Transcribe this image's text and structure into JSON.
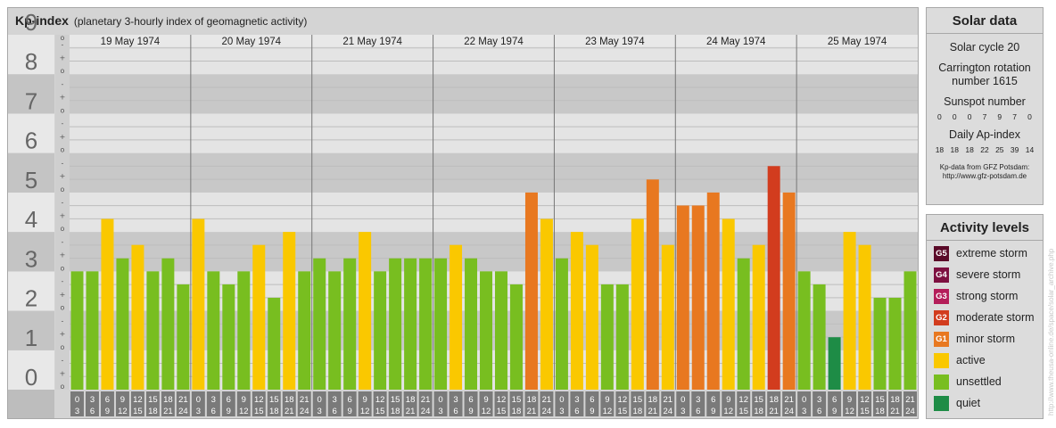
{
  "header": {
    "title": "Kp-index",
    "subtitle": "(planetary 3-hourly index of geomagnetic activity)"
  },
  "solar": {
    "heading": "Solar data",
    "cycle": "Solar cycle 20",
    "carrington_line1": "Carrington rotation",
    "carrington_line2": "number 1615",
    "sunspot_label": "Sunspot number",
    "sunspot_values": [
      "0",
      "0",
      "0",
      "7",
      "9",
      "7",
      "0"
    ],
    "ap_label": "Daily Ap-index",
    "ap_values": [
      "18",
      "18",
      "18",
      "22",
      "25",
      "39",
      "14"
    ],
    "source_line1": "Kp-data from GFZ Potsdam:",
    "source_line2": "http://www.gfz-potsdam.de"
  },
  "activity": {
    "heading": "Activity levels",
    "levels": [
      {
        "badge": "G5",
        "label": "extreme storm",
        "color": "#5a0a28"
      },
      {
        "badge": "G4",
        "label": "severe storm",
        "color": "#7d1040"
      },
      {
        "badge": "G3",
        "label": "strong storm",
        "color": "#b41e5a"
      },
      {
        "badge": "G2",
        "label": "moderate storm",
        "color": "#d23c1e"
      },
      {
        "badge": "G1",
        "label": "minor storm",
        "color": "#e87820"
      },
      {
        "badge": "",
        "label": "active",
        "color": "#fac800"
      },
      {
        "badge": "",
        "label": "unsettled",
        "color": "#78be20"
      },
      {
        "badge": "",
        "label": "quiet",
        "color": "#1e8c46"
      }
    ]
  },
  "watermark": "http://www.theusa-online.de/space/solar_archive.php",
  "chart_data": {
    "type": "bar",
    "title": "Kp-index",
    "ylim": [
      0,
      9
    ],
    "y_ticks": [
      "0",
      "1",
      "2",
      "3",
      "4",
      "5",
      "6",
      "7",
      "8",
      "9"
    ],
    "sub_ticks": [
      "o",
      "+",
      "-",
      "o"
    ],
    "days": [
      "19 May 1974",
      "20 May 1974",
      "21 May 1974",
      "22 May 1974",
      "23 May 1974",
      "24 May 1974",
      "25 May 1974"
    ],
    "hour_labels": [
      [
        "0",
        "3"
      ],
      [
        "3",
        "6"
      ],
      [
        "6",
        "9"
      ],
      [
        "9",
        "12"
      ],
      [
        "12",
        "15"
      ],
      [
        "15",
        "18"
      ],
      [
        "18",
        "21"
      ],
      [
        "21",
        "24"
      ]
    ],
    "kp": [
      [
        3.0,
        3.0,
        4.33,
        3.33,
        3.67,
        3.0,
        3.33,
        2.67
      ],
      [
        4.33,
        3.0,
        2.67,
        3.0,
        3.67,
        2.33,
        4.0,
        3.0
      ],
      [
        3.33,
        3.0,
        3.33,
        4.0,
        3.0,
        3.33,
        3.33,
        3.33
      ],
      [
        3.33,
        3.67,
        3.33,
        3.0,
        3.0,
        2.67,
        5.0,
        4.33
      ],
      [
        3.33,
        4.0,
        3.67,
        2.67,
        2.67,
        4.33,
        5.33,
        3.67
      ],
      [
        4.67,
        4.67,
        5.0,
        4.33,
        3.33,
        3.67,
        5.67,
        5.0
      ],
      [
        3.0,
        2.67,
        1.33,
        4.0,
        3.67,
        2.33,
        2.33,
        3.0
      ]
    ],
    "level_colors": {
      "quiet": "#1e8c46",
      "unsettled": "#78be20",
      "active": "#fac800",
      "G1": "#e87820",
      "G2": "#d23c1e",
      "G3": "#b41e5a",
      "G4": "#7d1040",
      "G5": "#5a0a28"
    }
  }
}
